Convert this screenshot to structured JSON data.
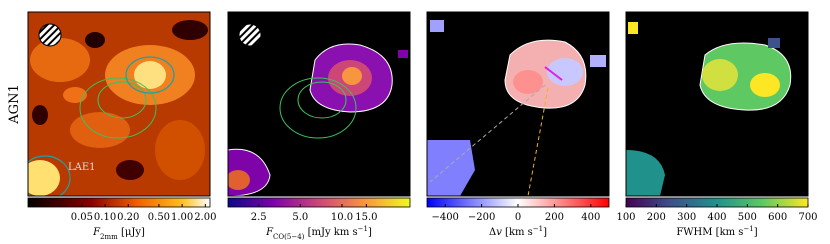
{
  "row_label": "AGN1",
  "chart_data": [
    {
      "type": "colorbar",
      "scale": "log",
      "clim": [
        0.01,
        2.3
      ],
      "ticks": [
        0.05,
        {
          "value": 0.1,
          "label": "0.10"
        },
        {
          "value": 0.2,
          "label": "0.20"
        },
        {
          "value": 0.5,
          "label": "0.50"
        },
        {
          "value": 1,
          "label": "1.00"
        },
        {
          "value": 2,
          "label": "2.00"
        }
      ],
      "label": [
        {
          "text": "F",
          "style": "italic"
        },
        {
          "text": "2mm",
          "style": "sub"
        },
        {
          "text": " [μJy]",
          "style": "normal"
        }
      ],
      "annotation": "LAE1"
    },
    {
      "type": "colorbar",
      "scale": "log",
      "clim": [
        1.5,
        31
      ],
      "ticks": [
        2.5,
        {
          "value": 5,
          "label": "5.0"
        },
        {
          "value": 10,
          "label": "10.0"
        },
        {
          "value": 15,
          "label": "15.0"
        }
      ],
      "label": [
        {
          "text": "F",
          "style": "italic"
        },
        {
          "text": "CO(5−4)",
          "style": "sub"
        },
        {
          "text": " [mJy km s",
          "style": "normal"
        },
        {
          "text": "−1",
          "style": "sup"
        },
        {
          "text": "]",
          "style": "normal"
        }
      ]
    },
    {
      "type": "colorbar",
      "scale": "linear",
      "clim": [
        -500,
        500
      ],
      "ticks": [
        {
          "value": -400,
          "label": "−400"
        },
        {
          "value": -200,
          "label": "−200"
        },
        0,
        200,
        400
      ],
      "label": [
        {
          "text": "Δ",
          "style": "normal"
        },
        {
          "text": "v",
          "style": "italic"
        },
        {
          "text": " [km s",
          "style": "normal"
        },
        {
          "text": "−1",
          "style": "sup"
        },
        {
          "text": "]",
          "style": "normal"
        }
      ]
    },
    {
      "type": "colorbar",
      "scale": "linear",
      "clim": [
        100,
        700
      ],
      "ticks": [
        100,
        200,
        300,
        400,
        500,
        600,
        700
      ],
      "label": [
        {
          "text": "FWHM [km s",
          "style": "normal"
        },
        {
          "text": "−1",
          "style": "sup"
        },
        {
          "text": "]",
          "style": "normal"
        }
      ]
    }
  ]
}
